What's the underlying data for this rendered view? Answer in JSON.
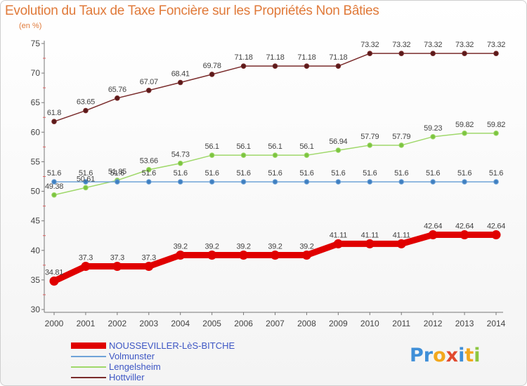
{
  "page": {
    "title": "Evolution du Taux de Taxe Foncière sur les Propriétés Non Bâties",
    "unit_label": "(en %)"
  },
  "logo": {
    "parts": [
      {
        "text": "Pr",
        "color": "#3f8fd8"
      },
      {
        "text": "o",
        "color": "#f2a81d"
      },
      {
        "text": "x",
        "color": "#e14a2f"
      },
      {
        "text": "i",
        "color": "#3f8fd8"
      },
      {
        "text": "t",
        "color": "#f2a81d"
      },
      {
        "text": "i",
        "color": "#8cc63f"
      }
    ]
  },
  "chart_data": {
    "type": "line",
    "title": "Evolution du Taux de Taxe Foncière sur les Propriétés Non Bâties",
    "ylabel": "(en %)",
    "ylim": [
      30,
      75
    ],
    "yticks": [
      30,
      35,
      40,
      45,
      50,
      55,
      60,
      65,
      70,
      75
    ],
    "grid": false,
    "legend_position": "bottom-left",
    "x": [
      "2000",
      "2001",
      "2002",
      "2003",
      "2004",
      "2005",
      "2006",
      "2007",
      "2008",
      "2009",
      "2010",
      "2011",
      "2012",
      "2013",
      "2014"
    ],
    "series": [
      {
        "name": "NOUSSEVILLER-LèS-BITCHE",
        "color": "#e00000",
        "thick": true,
        "values": [
          34.81,
          37.3,
          37.3,
          37.3,
          39.2,
          39.2,
          39.2,
          39.2,
          39.2,
          41.11,
          41.11,
          41.11,
          42.64,
          42.64,
          42.64
        ],
        "labels": [
          "34.81",
          "37.3",
          "37.3",
          "37.3",
          "39.2",
          "39.2",
          "39.2",
          "39.2",
          "39.2",
          "41.11",
          "41.11",
          "41.11",
          "42.64",
          "42.64",
          "42.64"
        ]
      },
      {
        "name": "Volmunster",
        "color": "#6fa3d8",
        "thick": false,
        "values": [
          51.6,
          51.6,
          51.6,
          51.6,
          51.6,
          51.6,
          51.6,
          51.6,
          51.6,
          51.6,
          51.6,
          51.6,
          51.6,
          51.6,
          51.6
        ],
        "labels": [
          "51.6",
          "51.6",
          "51.6",
          "51.6",
          "51.6",
          "51.6",
          "51.6",
          "51.6",
          "51.6",
          "51.6",
          "51.6",
          "51.6",
          "51.6",
          "51.6",
          "51.6"
        ]
      },
      {
        "name": "Lengelsheim",
        "color": "#9fd86a",
        "thick": false,
        "values": [
          49.38,
          50.61,
          51.85,
          53.66,
          54.73,
          56.1,
          56.1,
          56.1,
          56.1,
          56.94,
          57.79,
          57.79,
          59.23,
          59.82,
          59.82
        ],
        "labels": [
          "49.38",
          "50.61",
          "51.85",
          "53.66",
          "54.73",
          "56.1",
          "56.1",
          "56.1",
          "56.1",
          "56.94",
          "57.79",
          "57.79",
          "59.23",
          "59.82",
          "59.82"
        ]
      },
      {
        "name": "Hottviller",
        "color": "#7a2c2c",
        "thick": false,
        "values": [
          61.8,
          63.65,
          65.76,
          67.07,
          68.41,
          69.78,
          71.18,
          71.18,
          71.18,
          71.18,
          73.32,
          73.32,
          73.32,
          73.32,
          73.32
        ],
        "labels": [
          "61.8",
          "63.65",
          "65.76",
          "67.07",
          "68.41",
          "69.78",
          "71.18",
          "71.18",
          "71.18",
          "71.18",
          "73.32",
          "73.32",
          "73.32",
          "73.32",
          "73.32"
        ]
      }
    ]
  }
}
